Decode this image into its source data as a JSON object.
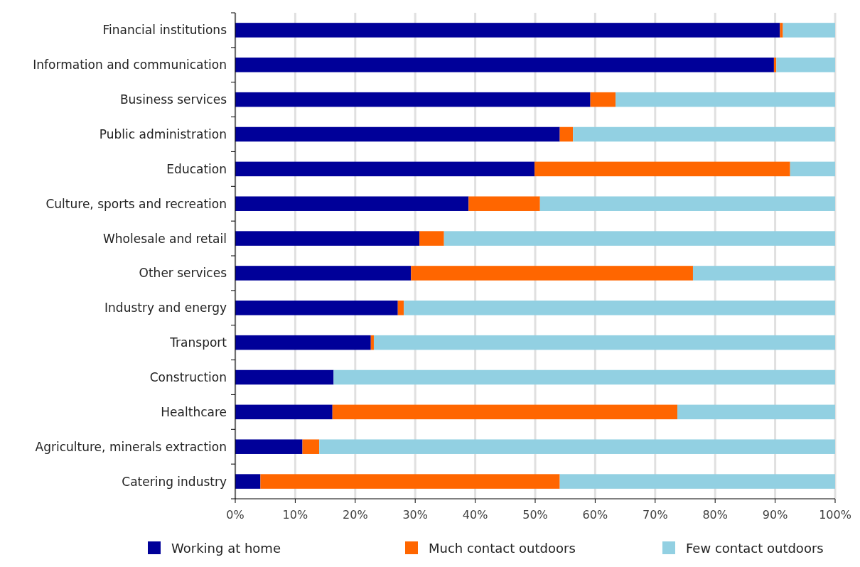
{
  "chart_data": {
    "type": "bar",
    "orientation": "horizontal",
    "stacked": true,
    "categories": [
      "Financial institutions",
      "Information and communication",
      "Business services",
      "Public administration",
      "Education",
      "Culture, sports and recreation",
      "Wholesale and retail",
      "Other services",
      "Industry and energy",
      "Transport",
      "Construction",
      "Healthcare",
      "Agriculture, minerals extraction",
      "Catering industry"
    ],
    "series": [
      {
        "name": "Working at home",
        "color": "#000099",
        "values": [
          90.8,
          89.8,
          59.2,
          54.1,
          49.9,
          38.9,
          30.7,
          29.3,
          27.1,
          22.6,
          16.4,
          16.2,
          11.2,
          4.2
        ]
      },
      {
        "name": "Much contact outdoors",
        "color": "#ff6600",
        "values": [
          0.5,
          0.4,
          4.2,
          2.2,
          42.6,
          11.9,
          4.1,
          47,
          1,
          0.5,
          0,
          57.5,
          2.8,
          49.9
        ]
      },
      {
        "name": "Few contact outdoors",
        "color": "#92d0e2",
        "values": [
          8.7,
          9.8,
          36.6,
          43.7,
          7.5,
          49.2,
          65.2,
          23.7,
          71.9,
          76.9,
          83.6,
          26.3,
          86,
          45.9
        ]
      }
    ],
    "xlim": [
      0,
      100
    ],
    "xticks": [
      {
        "value": 0,
        "label": "0%"
      },
      {
        "value": 10,
        "label": "10%"
      },
      {
        "value": 20,
        "label": "20%"
      },
      {
        "value": 30,
        "label": "30%"
      },
      {
        "value": 40,
        "label": "40%"
      },
      {
        "value": 50,
        "label": "50%"
      },
      {
        "value": 60,
        "label": "60%"
      },
      {
        "value": 70,
        "label": "70%"
      },
      {
        "value": 80,
        "label": "80%"
      },
      {
        "value": 90,
        "label": "90%"
      },
      {
        "value": 100,
        "label": "100%"
      }
    ],
    "grid": "x",
    "legend": "bottom"
  }
}
